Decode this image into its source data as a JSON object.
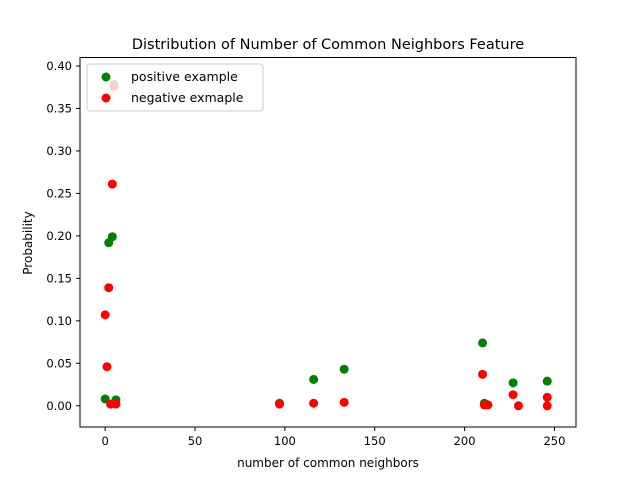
{
  "chart_data": {
    "type": "scatter",
    "title": "Distribution of Number of Common Neighbors Feature",
    "xlabel": "number of common neighbors",
    "ylabel": "Probability",
    "xlim": [
      -14,
      262
    ],
    "ylim": [
      -0.025,
      0.41
    ],
    "xticks": [
      0,
      50,
      100,
      150,
      200,
      250
    ],
    "xtick_labels": [
      "0",
      "50",
      "100",
      "150",
      "200",
      "250"
    ],
    "yticks": [
      0.0,
      0.05,
      0.1,
      0.15,
      0.2,
      0.25,
      0.3,
      0.35,
      0.4
    ],
    "ytick_labels": [
      "0.00",
      "0.05",
      "0.10",
      "0.15",
      "0.20",
      "0.25",
      "0.30",
      "0.35",
      "0.40"
    ],
    "grid": false,
    "legend_position": "top-left",
    "series": [
      {
        "name": "positive example",
        "color": "#008000",
        "points": [
          [
            0,
            0.008
          ],
          [
            2,
            0.192
          ],
          [
            4,
            0.199
          ],
          [
            5,
            0.378
          ],
          [
            6,
            0.007
          ],
          [
            97,
            0.003
          ],
          [
            116,
            0.031
          ],
          [
            133,
            0.043
          ],
          [
            210,
            0.074
          ],
          [
            211,
            0.003
          ],
          [
            227,
            0.027
          ],
          [
            246,
            0.029
          ]
        ]
      },
      {
        "name": "negative exmaple",
        "color": "#ff0000",
        "points": [
          [
            0,
            0.107
          ],
          [
            1,
            0.046
          ],
          [
            2,
            0.139
          ],
          [
            3,
            0.002
          ],
          [
            4,
            0.261
          ],
          [
            5,
            0.376
          ],
          [
            6,
            0.002
          ],
          [
            97,
            0.002
          ],
          [
            116,
            0.003
          ],
          [
            133,
            0.004
          ],
          [
            210,
            0.037
          ],
          [
            211,
            0.001
          ],
          [
            213,
            0.001
          ],
          [
            227,
            0.013
          ],
          [
            230,
            0.0
          ],
          [
            246,
            0.01
          ],
          [
            246,
            0.0
          ]
        ]
      }
    ]
  }
}
